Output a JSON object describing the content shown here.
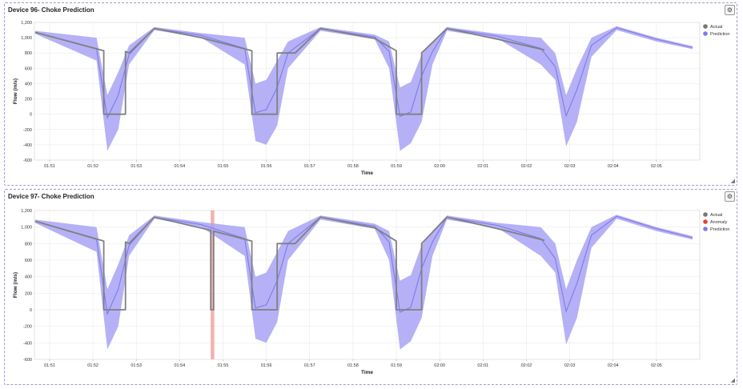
{
  "panels": [
    {
      "title": "Device 96- Choke Prediction",
      "settings_icon": "gear-icon",
      "chart_data": {
        "type": "line",
        "xlabel": "Time",
        "ylabel": "Flow (m/s)",
        "ylim": [
          -600,
          1200
        ],
        "yticks": [
          "-600",
          "-400",
          "-200",
          "0",
          "200",
          "400",
          "600",
          "800",
          "1,000",
          "1,200"
        ],
        "xticks": [
          "01:51",
          "01:52",
          "01:53",
          "01:54",
          "01:55",
          "01:56",
          "01:57",
          "01:58",
          "01:59",
          "02:00",
          "02:01",
          "02:02",
          "02:03",
          "02:04",
          "02:05"
        ],
        "xlim_minutes": [
          110.65,
          126.0
        ],
        "grid": true,
        "legend": "top-right",
        "legend_items": [
          {
            "name": "Actual",
            "color": "#777777"
          },
          {
            "name": "Prediction",
            "color": "#7b7be8"
          }
        ],
        "series": [
          {
            "name": "Actual",
            "color": "#808080",
            "x": [
              "01:50:40",
              "01:52:15",
              "01:52:15",
              "01:52:45",
              "01:52:45",
              "01:52:50",
              "01:53:25",
              "01:54:30",
              "01:55:40",
              "01:55:40",
              "01:56:15",
              "01:56:15",
              "01:56:40",
              "01:57:15",
              "01:58:30",
              "01:59:00",
              "01:59:00",
              "01:59:35",
              "01:59:35",
              "02:00:10",
              "02:01:20",
              "02:02:25"
            ],
            "values": [
              1070,
              830,
              0,
              0,
              820,
              800,
              1120,
              1000,
              830,
              0,
              0,
              800,
              800,
              1120,
              990,
              830,
              0,
              0,
              800,
              1120,
              980,
              840
            ]
          },
          {
            "name": "Prediction",
            "color": "#7b7be8",
            "x": [
              "01:50:40",
              "01:52:05",
              "01:52:20",
              "01:52:35",
              "01:52:50",
              "01:53:25",
              "01:54:30",
              "01:55:30",
              "01:55:45",
              "01:56:00",
              "01:56:15",
              "01:56:30",
              "01:57:15",
              "01:58:30",
              "01:58:50",
              "01:59:05",
              "01:59:20",
              "01:59:35",
              "01:59:50",
              "02:00:10",
              "02:01:20",
              "02:02:20",
              "02:02:40",
              "02:02:55",
              "02:03:10",
              "02:03:30",
              "02:04:05",
              "02:05:00",
              "02:05:50"
            ],
            "values": [
              1070,
              850,
              -50,
              250,
              780,
              1120,
              1030,
              860,
              20,
              60,
              350,
              800,
              1120,
              1010,
              820,
              -30,
              30,
              500,
              820,
              1120,
              1020,
              860,
              620,
              -20,
              320,
              900,
              1130,
              980,
              870
            ],
            "band_low": [
              1050,
              700,
              -480,
              -200,
              650,
              1100,
              1000,
              650,
              -350,
              -400,
              -150,
              600,
              1090,
              980,
              600,
              -480,
              -380,
              -100,
              650,
              1090,
              990,
              650,
              450,
              -420,
              -100,
              750,
              1100,
              950,
              850
            ],
            "band_high": [
              1090,
              1000,
              250,
              550,
              900,
              1140,
              1060,
              1000,
              400,
              450,
              700,
              950,
              1140,
              1040,
              950,
              350,
              420,
              780,
              950,
              1140,
              1050,
              1000,
              800,
              250,
              600,
              1000,
              1150,
              1000,
              890
            ]
          }
        ]
      }
    },
    {
      "title": "Device 97- Choke Prediction",
      "settings_icon": "gear-icon",
      "chart_data": {
        "type": "line",
        "xlabel": "Time",
        "ylabel": "Flow (m/s)",
        "ylim": [
          -600,
          1200
        ],
        "yticks": [
          "-600",
          "-400",
          "-200",
          "0",
          "200",
          "400",
          "600",
          "800",
          "1,000",
          "1,200"
        ],
        "xticks": [
          "01:51",
          "01:52",
          "01:53",
          "01:54",
          "01:55",
          "01:56",
          "01:57",
          "01:58",
          "01:59",
          "02:00",
          "02:01",
          "02:02",
          "02:03",
          "02:04",
          "02:05"
        ],
        "xlim_minutes": [
          110.65,
          126.0
        ],
        "grid": true,
        "legend": "top-right",
        "legend_items": [
          {
            "name": "Actual",
            "color": "#777777"
          },
          {
            "name": "Anomaly",
            "color": "#e8412c"
          },
          {
            "name": "Prediction",
            "color": "#7b7be8"
          }
        ],
        "anomaly": {
          "start": "01:54:43",
          "end": "01:54:48",
          "color": "#f0a4a0"
        },
        "series": [
          {
            "name": "Actual",
            "color": "#808080",
            "x": [
              "01:50:40",
              "01:52:15",
              "01:52:15",
              "01:52:45",
              "01:52:45",
              "01:52:50",
              "01:53:25",
              "01:54:43",
              "01:54:43",
              "01:54:47",
              "01:54:47",
              "01:55:40",
              "01:55:40",
              "01:56:15",
              "01:56:15",
              "01:56:40",
              "01:57:15",
              "01:58:30",
              "01:59:00",
              "01:59:00",
              "01:59:35",
              "01:59:35",
              "02:00:10",
              "02:01:20",
              "02:02:25"
            ],
            "values": [
              1070,
              830,
              0,
              0,
              820,
              800,
              1120,
              960,
              0,
              0,
              950,
              830,
              0,
              0,
              800,
              800,
              1120,
              990,
              830,
              0,
              0,
              800,
              1120,
              980,
              840
            ]
          },
          {
            "name": "Prediction",
            "color": "#7b7be8",
            "x": [
              "01:50:40",
              "01:52:05",
              "01:52:20",
              "01:52:35",
              "01:52:50",
              "01:53:25",
              "01:54:30",
              "01:55:30",
              "01:55:45",
              "01:56:00",
              "01:56:15",
              "01:56:30",
              "01:57:15",
              "01:58:30",
              "01:58:50",
              "01:59:05",
              "01:59:20",
              "01:59:35",
              "01:59:50",
              "02:00:10",
              "02:01:20",
              "02:02:20",
              "02:02:40",
              "02:02:55",
              "02:03:10",
              "02:03:30",
              "02:04:05",
              "02:05:00",
              "02:05:50"
            ],
            "values": [
              1070,
              850,
              -50,
              250,
              780,
              1120,
              1030,
              860,
              20,
              60,
              350,
              800,
              1120,
              1010,
              820,
              -30,
              30,
              500,
              820,
              1120,
              1020,
              860,
              620,
              -20,
              320,
              900,
              1130,
              980,
              870
            ],
            "band_low": [
              1050,
              700,
              -480,
              -200,
              650,
              1100,
              1000,
              650,
              -350,
              -400,
              -150,
              600,
              1090,
              980,
              600,
              -480,
              -380,
              -100,
              650,
              1090,
              990,
              650,
              450,
              -420,
              -100,
              750,
              1100,
              950,
              850
            ],
            "band_high": [
              1090,
              1000,
              250,
              550,
              900,
              1140,
              1060,
              1000,
              400,
              450,
              700,
              950,
              1140,
              1040,
              950,
              350,
              420,
              780,
              950,
              1140,
              1050,
              1000,
              800,
              250,
              600,
              1000,
              1150,
              1000,
              890
            ]
          }
        ]
      }
    }
  ]
}
